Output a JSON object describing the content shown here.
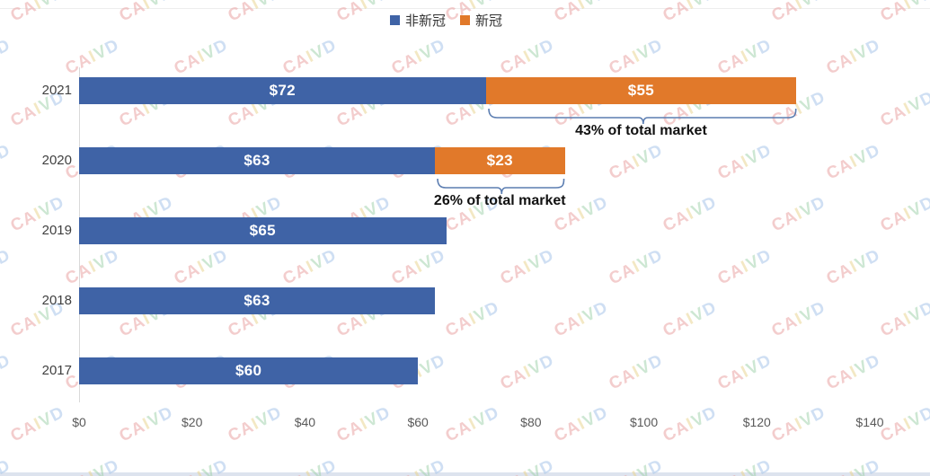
{
  "chart_data": {
    "type": "bar",
    "orientation": "horizontal",
    "stacked": true,
    "title": "",
    "categories": [
      "2021",
      "2020",
      "2019",
      "2018",
      "2017"
    ],
    "series": [
      {
        "name": "非新冠",
        "color": "#3F63A6",
        "values": [
          72,
          63,
          65,
          63,
          60
        ],
        "labels": [
          "$72",
          "$63",
          "$65",
          "$63",
          "$60"
        ]
      },
      {
        "name": "新冠",
        "color": "#E1792A",
        "values": [
          55,
          23,
          0,
          0,
          0
        ],
        "labels": [
          "$55",
          "$23",
          "",
          "",
          ""
        ]
      }
    ],
    "x_ticks": [
      "$0",
      "$20",
      "$40",
      "$60",
      "$80",
      "$100",
      "$120",
      "$140"
    ],
    "x_tick_values": [
      0,
      20,
      40,
      60,
      80,
      100,
      120,
      140
    ],
    "xlim": [
      0,
      140
    ],
    "value_unit": "$B",
    "grid": false,
    "legend_position": "top-center",
    "annotations": [
      {
        "text": "43% of total market",
        "category": "2021",
        "series": "新冠"
      },
      {
        "text": "26% of total market",
        "category": "2020",
        "series": "新冠"
      }
    ]
  },
  "legend": {
    "items": [
      {
        "label": "非新冠",
        "color": "#3F63A6"
      },
      {
        "label": "新冠",
        "color": "#E1792A"
      }
    ]
  },
  "watermark": {
    "text": "CAIVD",
    "letters": [
      {
        "ch": "C",
        "color": "#EBA6A6"
      },
      {
        "ch": "A",
        "color": "#EBA6A6"
      },
      {
        "ch": "I",
        "color": "#EAD694"
      },
      {
        "ch": "V",
        "color": "#A6D4B0"
      },
      {
        "ch": "D",
        "color": "#A8C6EA"
      }
    ]
  },
  "colors": {
    "bracket": "#5B7DB1",
    "axis_label": "#595959",
    "category_label": "#404040",
    "bar_label": "#FFFFFF",
    "axis_line": "#D9D9D9"
  }
}
